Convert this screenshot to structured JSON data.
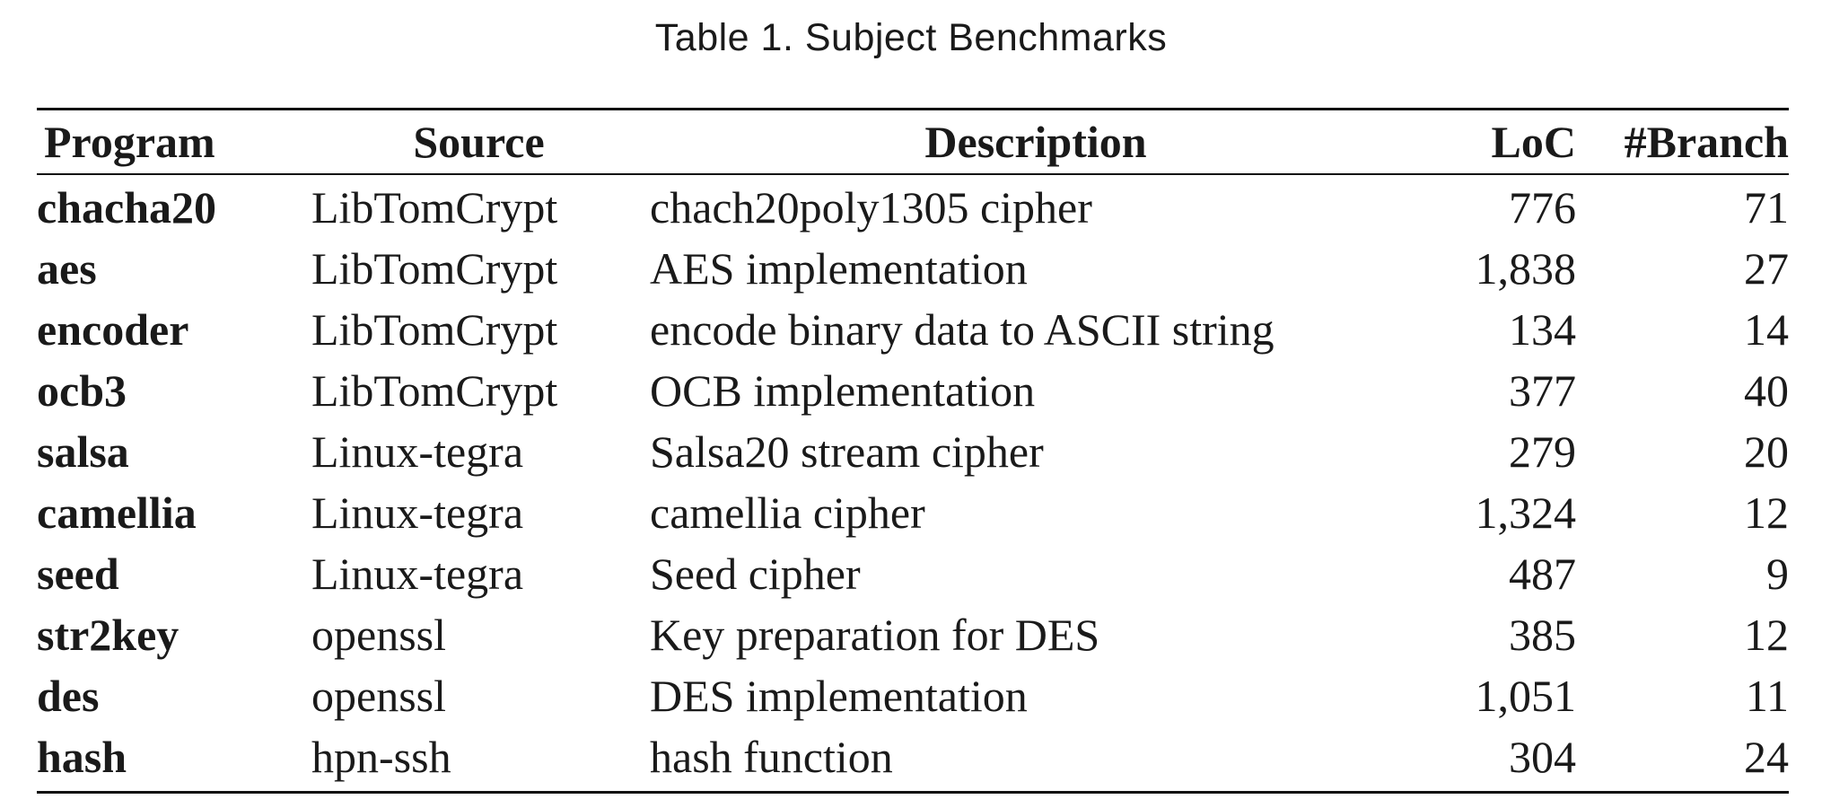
{
  "caption": "Table 1.  Subject Benchmarks",
  "table": {
    "headers": {
      "program": "Program",
      "source": "Source",
      "description": "Description",
      "loc": "LoC",
      "branch": "#Branch"
    },
    "rows": [
      {
        "program": "chacha20",
        "source": "LibTomCrypt",
        "description": "chach20poly1305 cipher",
        "loc": "776",
        "branch": "71"
      },
      {
        "program": "aes",
        "source": "LibTomCrypt",
        "description": "AES implementation",
        "loc": "1,838",
        "branch": "27"
      },
      {
        "program": "encoder",
        "source": "LibTomCrypt",
        "description": "encode binary data to ASCII string",
        "loc": "134",
        "branch": "14"
      },
      {
        "program": "ocb3",
        "source": "LibTomCrypt",
        "description": "OCB implementation",
        "loc": "377",
        "branch": "40"
      },
      {
        "program": "salsa",
        "source": "Linux-tegra",
        "description": "Salsa20 stream cipher",
        "loc": "279",
        "branch": "20"
      },
      {
        "program": "camellia",
        "source": "Linux-tegra",
        "description": "camellia cipher",
        "loc": "1,324",
        "branch": "12"
      },
      {
        "program": "seed",
        "source": "Linux-tegra",
        "description": "Seed cipher",
        "loc": "487",
        "branch": "9"
      },
      {
        "program": "str2key",
        "source": "openssl",
        "description": "Key preparation for DES",
        "loc": "385",
        "branch": "12"
      },
      {
        "program": "des",
        "source": "openssl",
        "description": "DES implementation",
        "loc": "1,051",
        "branch": "11"
      },
      {
        "program": "hash",
        "source": "hpn-ssh",
        "description": "hash function",
        "loc": "304",
        "branch": "24"
      }
    ]
  }
}
